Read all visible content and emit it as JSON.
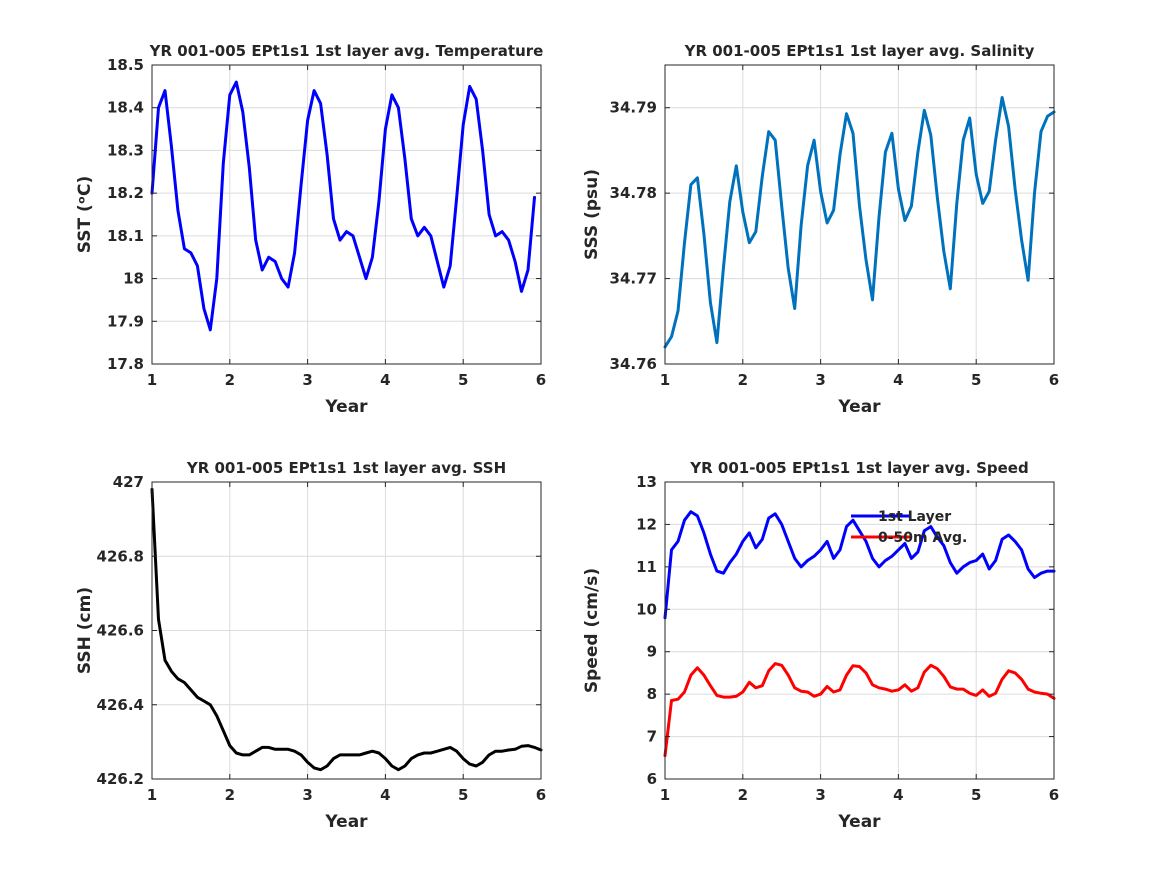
{
  "chart_data": [
    {
      "type": "line",
      "title": "YR 001-005 EPt1s1 1st layer avg. Temperature",
      "xlabel": "Year",
      "ylabel": "SST (ᵒC)",
      "xlim": [
        1,
        6
      ],
      "ylim": [
        17.8,
        18.5
      ],
      "xticks": [
        "1",
        "2",
        "3",
        "4",
        "5",
        "6"
      ],
      "yticks": [
        "17.8",
        "17.9",
        "18",
        "18.1",
        "18.2",
        "18.3",
        "18.4",
        "18.5"
      ],
      "grid": true,
      "colors": {
        "series": "#0000ff"
      },
      "series": [
        {
          "x": [
            1.0,
            1.083,
            1.167,
            1.25,
            1.333,
            1.417,
            1.5,
            1.583,
            1.667,
            1.75,
            1.833,
            1.917,
            2.0,
            2.083,
            2.167,
            2.25,
            2.333,
            2.417,
            2.5,
            2.583,
            2.667,
            2.75,
            2.833,
            2.917,
            3.0,
            3.083,
            3.167,
            3.25,
            3.333,
            3.417,
            3.5,
            3.583,
            3.667,
            3.75,
            3.833,
            3.917,
            4.0,
            4.083,
            4.167,
            4.25,
            4.333,
            4.417,
            4.5,
            4.583,
            4.667,
            4.75,
            4.833,
            4.917,
            5.0,
            5.083,
            5.167,
            5.25,
            5.333,
            5.417,
            5.5,
            5.583,
            5.667,
            5.75,
            5.833,
            5.917
          ],
          "y": [
            18.2,
            18.4,
            18.44,
            18.31,
            18.16,
            18.07,
            18.06,
            18.03,
            17.93,
            17.88,
            18.0,
            18.27,
            18.43,
            18.46,
            18.39,
            18.26,
            18.09,
            18.02,
            18.05,
            18.04,
            18.0,
            17.98,
            18.06,
            18.22,
            18.37,
            18.44,
            18.41,
            18.29,
            18.14,
            18.09,
            18.11,
            18.1,
            18.05,
            18.0,
            18.05,
            18.18,
            18.35,
            18.43,
            18.4,
            18.28,
            18.14,
            18.1,
            18.12,
            18.1,
            18.04,
            17.98,
            18.03,
            18.19,
            18.36,
            18.45,
            18.42,
            18.3,
            18.15,
            18.1,
            18.11,
            18.09,
            18.04,
            17.97,
            18.02,
            18.19
          ]
        }
      ]
    },
    {
      "type": "line",
      "title": "YR 001-005 EPt1s1 1st layer avg. Salinity",
      "xlabel": "Year",
      "ylabel": "SSS (psu)",
      "xlim": [
        1,
        6
      ],
      "ylim": [
        34.76,
        34.795
      ],
      "xticks": [
        "1",
        "2",
        "3",
        "4",
        "5",
        "6"
      ],
      "yticks": [
        "34.76",
        "34.77",
        "34.78",
        "34.79"
      ],
      "grid": true,
      "colors": {
        "series": "#0072bd"
      },
      "series": [
        {
          "x": [
            1.0,
            1.083,
            1.167,
            1.25,
            1.333,
            1.417,
            1.5,
            1.583,
            1.667,
            1.75,
            1.833,
            1.917,
            2.0,
            2.083,
            2.167,
            2.25,
            2.333,
            2.417,
            2.5,
            2.583,
            2.667,
            2.75,
            2.833,
            2.917,
            3.0,
            3.083,
            3.167,
            3.25,
            3.333,
            3.417,
            3.5,
            3.583,
            3.667,
            3.75,
            3.833,
            3.917,
            4.0,
            4.083,
            4.167,
            4.25,
            4.333,
            4.417,
            4.5,
            4.583,
            4.667,
            4.75,
            4.833,
            4.917,
            5.0,
            5.083,
            5.167,
            5.25,
            5.333,
            5.417,
            5.5,
            5.583,
            5.667,
            5.75,
            5.833,
            5.917,
            6.0
          ],
          "y": [
            34.762,
            34.7632,
            34.7662,
            34.7742,
            34.781,
            34.7818,
            34.7752,
            34.7672,
            34.7625,
            34.7712,
            34.779,
            34.7832,
            34.7778,
            34.7742,
            34.7755,
            34.782,
            34.7872,
            34.7862,
            34.7785,
            34.7712,
            34.7665,
            34.7762,
            34.7832,
            34.7862,
            34.7802,
            34.7765,
            34.778,
            34.7845,
            34.7893,
            34.787,
            34.7785,
            34.7722,
            34.7675,
            34.7772,
            34.7848,
            34.787,
            34.7805,
            34.7768,
            34.7785,
            34.7848,
            34.7897,
            34.7868,
            34.7795,
            34.7732,
            34.7688,
            34.7788,
            34.7862,
            34.7888,
            34.7822,
            34.7788,
            34.7802,
            34.7862,
            34.7912,
            34.7878,
            34.7805,
            34.7745,
            34.7698,
            34.78,
            34.7872,
            34.789,
            34.7895
          ]
        }
      ]
    },
    {
      "type": "line",
      "title": "YR 001-005 EPt1s1 1st layer avg. SSH",
      "xlabel": "Year",
      "ylabel": "SSH (cm)",
      "xlim": [
        1,
        6
      ],
      "ylim": [
        426.2,
        427
      ],
      "xticks": [
        "1",
        "2",
        "3",
        "4",
        "5",
        "6"
      ],
      "yticks": [
        "426.2",
        "426.4",
        "426.6",
        "426.8",
        "427"
      ],
      "grid": true,
      "colors": {
        "series": "#000000"
      },
      "series": [
        {
          "x": [
            1.0,
            1.083,
            1.167,
            1.25,
            1.333,
            1.417,
            1.5,
            1.583,
            1.667,
            1.75,
            1.833,
            1.917,
            2.0,
            2.083,
            2.167,
            2.25,
            2.333,
            2.417,
            2.5,
            2.583,
            2.667,
            2.75,
            2.833,
            2.917,
            3.0,
            3.083,
            3.167,
            3.25,
            3.333,
            3.417,
            3.5,
            3.583,
            3.667,
            3.75,
            3.833,
            3.917,
            4.0,
            4.083,
            4.167,
            4.25,
            4.333,
            4.417,
            4.5,
            4.583,
            4.667,
            4.75,
            4.833,
            4.917,
            5.0,
            5.083,
            5.167,
            5.25,
            5.333,
            5.417,
            5.5,
            5.583,
            5.667,
            5.75,
            5.833,
            5.917,
            6.0
          ],
          "y": [
            426.98,
            426.63,
            426.52,
            426.49,
            426.47,
            426.46,
            426.44,
            426.42,
            426.41,
            426.4,
            426.37,
            426.33,
            426.29,
            426.27,
            426.265,
            426.265,
            426.275,
            426.285,
            426.285,
            426.28,
            426.28,
            426.28,
            426.275,
            426.265,
            426.245,
            426.23,
            426.225,
            426.235,
            426.255,
            426.265,
            426.265,
            426.265,
            426.265,
            426.27,
            426.275,
            426.27,
            426.255,
            426.235,
            426.225,
            426.235,
            426.255,
            426.265,
            426.27,
            426.27,
            426.275,
            426.28,
            426.285,
            426.275,
            426.255,
            426.24,
            426.235,
            426.245,
            426.265,
            426.275,
            426.275,
            426.278,
            426.28,
            426.288,
            426.29,
            426.285,
            426.278
          ]
        }
      ]
    },
    {
      "type": "line",
      "title": "YR 001-005 EPt1s1 1st layer avg. Speed",
      "xlabel": "Year",
      "ylabel": "Speed (cm/s)",
      "xlim": [
        1,
        6
      ],
      "ylim": [
        6,
        13
      ],
      "xticks": [
        "1",
        "2",
        "3",
        "4",
        "5",
        "6"
      ],
      "yticks": [
        "6",
        "7",
        "8",
        "9",
        "10",
        "11",
        "12",
        "13"
      ],
      "grid": true,
      "legend": "top-right",
      "series": [
        {
          "name": "1st Layer",
          "color": "#0000ff",
          "x": [
            1.0,
            1.083,
            1.167,
            1.25,
            1.333,
            1.417,
            1.5,
            1.583,
            1.667,
            1.75,
            1.833,
            1.917,
            2.0,
            2.083,
            2.167,
            2.25,
            2.333,
            2.417,
            2.5,
            2.583,
            2.667,
            2.75,
            2.833,
            2.917,
            3.0,
            3.083,
            3.167,
            3.25,
            3.333,
            3.417,
            3.5,
            3.583,
            3.667,
            3.75,
            3.833,
            3.917,
            4.0,
            4.083,
            4.167,
            4.25,
            4.333,
            4.417,
            4.5,
            4.583,
            4.667,
            4.75,
            4.833,
            4.917,
            5.0,
            5.083,
            5.167,
            5.25,
            5.333,
            5.417,
            5.5,
            5.583,
            5.667,
            5.75,
            5.833,
            5.917,
            6.0
          ],
          "y": [
            9.8,
            11.4,
            11.6,
            12.1,
            12.3,
            12.2,
            11.8,
            11.3,
            10.9,
            10.85,
            11.1,
            11.3,
            11.6,
            11.8,
            11.45,
            11.65,
            12.15,
            12.25,
            12.0,
            11.6,
            11.2,
            11.0,
            11.15,
            11.25,
            11.4,
            11.6,
            11.2,
            11.4,
            11.95,
            12.1,
            11.85,
            11.6,
            11.2,
            11.0,
            11.15,
            11.25,
            11.4,
            11.55,
            11.2,
            11.35,
            11.85,
            11.95,
            11.7,
            11.5,
            11.1,
            10.85,
            11.0,
            11.1,
            11.15,
            11.3,
            10.95,
            11.15,
            11.65,
            11.75,
            11.6,
            11.4,
            10.95,
            10.75,
            10.85,
            10.9,
            10.9
          ]
        },
        {
          "name": "0-50m Avg.",
          "color": "#ff0000",
          "x": [
            1.0,
            1.083,
            1.167,
            1.25,
            1.333,
            1.417,
            1.5,
            1.583,
            1.667,
            1.75,
            1.833,
            1.917,
            2.0,
            2.083,
            2.167,
            2.25,
            2.333,
            2.417,
            2.5,
            2.583,
            2.667,
            2.75,
            2.833,
            2.917,
            3.0,
            3.083,
            3.167,
            3.25,
            3.333,
            3.417,
            3.5,
            3.583,
            3.667,
            3.75,
            3.833,
            3.917,
            4.0,
            4.083,
            4.167,
            4.25,
            4.333,
            4.417,
            4.5,
            4.583,
            4.667,
            4.75,
            4.833,
            4.917,
            5.0,
            5.083,
            5.167,
            5.25,
            5.333,
            5.417,
            5.5,
            5.583,
            5.667,
            5.75,
            5.833,
            5.917,
            6.0
          ],
          "y": [
            6.55,
            7.85,
            7.88,
            8.05,
            8.45,
            8.62,
            8.45,
            8.2,
            7.97,
            7.93,
            7.93,
            7.95,
            8.05,
            8.28,
            8.15,
            8.2,
            8.55,
            8.72,
            8.68,
            8.45,
            8.15,
            8.07,
            8.05,
            7.95,
            8.0,
            8.18,
            8.05,
            8.1,
            8.45,
            8.67,
            8.65,
            8.5,
            8.22,
            8.15,
            8.12,
            8.07,
            8.1,
            8.22,
            8.07,
            8.15,
            8.52,
            8.68,
            8.6,
            8.42,
            8.17,
            8.12,
            8.12,
            8.02,
            7.97,
            8.1,
            7.95,
            8.02,
            8.35,
            8.55,
            8.5,
            8.35,
            8.12,
            8.05,
            8.02,
            8.0,
            7.9
          ]
        }
      ]
    }
  ]
}
